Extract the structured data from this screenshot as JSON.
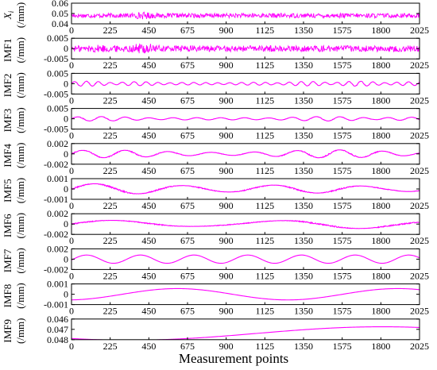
{
  "chart_data": {
    "type": "line",
    "xlabel": "Measurement points",
    "xlim": [
      0,
      2025
    ],
    "x_ticks": [
      0,
      225,
      450,
      675,
      900,
      1125,
      1350,
      1575,
      1800,
      2025
    ],
    "line_color": "#ff00ff",
    "panels": [
      {
        "id": "xi",
        "ylabel_main": "X",
        "ylabel_sub": "i",
        "ylabel_unit": "(/mm)",
        "ylim": [
          0.04,
          0.06
        ],
        "y_ticks": [
          "0.06",
          "0.05",
          "0.04"
        ],
        "tick_values": [
          0.06,
          0.05,
          0.04
        ],
        "signal": {
          "kind": "noise",
          "mean": 0.048,
          "amp": 0.0022,
          "bursts": [
            [
              420,
              60,
              1.6
            ]
          ]
        }
      },
      {
        "id": "imf1",
        "ylabel_main": "IMF1",
        "ylabel_unit": "(/mm)",
        "ylim": [
          -0.005,
          0.005
        ],
        "y_ticks": [
          "0.005",
          "0",
          "-0.005"
        ],
        "tick_values": [
          0.005,
          0,
          -0.005
        ],
        "signal": {
          "kind": "noise",
          "mean": 0,
          "amp": 0.0015,
          "bursts": [
            [
              420,
              60,
              2.0
            ],
            [
              180,
              80,
              1.3
            ]
          ]
        }
      },
      {
        "id": "imf2",
        "ylabel_main": "IMF2",
        "ylabel_unit": "(/mm)",
        "ylim": [
          -0.005,
          0.005
        ],
        "y_ticks": [
          "0.005",
          "0",
          "-0.005"
        ],
        "tick_values": [
          0.005,
          0,
          -0.005
        ],
        "signal": {
          "kind": "bursty",
          "mean": 0,
          "amp": 0.0012,
          "freq": 0.09
        }
      },
      {
        "id": "imf3",
        "ylabel_main": "IMF3",
        "ylabel_unit": "(/mm)",
        "ylim": [
          -0.005,
          0.005
        ],
        "y_ticks": [
          "0.005",
          "0",
          "-0.005"
        ],
        "tick_values": [
          0.005,
          0,
          -0.005
        ],
        "signal": {
          "kind": "bursty",
          "mean": 0,
          "amp": 0.0011,
          "freq": 0.045
        }
      },
      {
        "id": "imf4",
        "ylabel_main": "IMF4",
        "ylabel_unit": "(/mm)",
        "ylim": [
          -0.002,
          0.002
        ],
        "y_ticks": [
          "0.002",
          "0",
          "-0.002"
        ],
        "tick_values": [
          0.002,
          0,
          -0.002
        ],
        "signal": {
          "kind": "bursty",
          "mean": 0,
          "amp": 0.0008,
          "freq": 0.025
        }
      },
      {
        "id": "imf5",
        "ylabel_main": "IMF5",
        "ylabel_unit": "(/mm)",
        "ylim": [
          -0.001,
          0.001
        ],
        "y_ticks": [
          "0.001",
          "0",
          "-0.001"
        ],
        "tick_values": [
          0.001,
          0,
          -0.001
        ],
        "signal": {
          "kind": "bursty",
          "mean": 0,
          "amp": 0.0006,
          "freq": 0.012
        }
      },
      {
        "id": "imf6",
        "ylabel_main": "IMF6",
        "ylabel_unit": "(/mm)",
        "ylim": [
          -0.002,
          0.002
        ],
        "y_ticks": [
          "0.002",
          "0",
          "-0.002"
        ],
        "tick_values": [
          0.002,
          0,
          -0.002
        ],
        "signal": {
          "kind": "bursty",
          "mean": 0,
          "amp": 0.0009,
          "freq": 0.0065
        }
      },
      {
        "id": "imf7",
        "ylabel_main": "IMF7",
        "ylabel_unit": "(/mm)",
        "ylim": [
          -0.002,
          0.002
        ],
        "y_ticks": [
          "0.002",
          "0",
          "-0.002"
        ],
        "tick_values": [
          0.002,
          0,
          -0.002
        ],
        "signal": {
          "kind": "sine",
          "mean": 0,
          "amp": 0.0008,
          "freq": 0.0032,
          "phase": -0.2
        }
      },
      {
        "id": "imf8",
        "ylabel_main": "IMF8",
        "ylabel_unit": "(/mm)",
        "ylim": [
          -0.001,
          0.001
        ],
        "y_ticks": [
          "0.001",
          "0",
          "-0.001"
        ],
        "tick_values": [
          0.001,
          0,
          -0.001
        ],
        "signal": {
          "kind": "sine",
          "mean": 0,
          "amp": 0.00055,
          "freq": 0.00078,
          "phase": -1.45
        }
      },
      {
        "id": "imf9",
        "ylabel_main": "IMF9",
        "ylabel_unit": "(/mm)",
        "ylim": [
          0.048,
          0.046
        ],
        "y_ticks": [
          "0.046",
          "0.047",
          "0.048"
        ],
        "tick_values": [
          0.046,
          0.047,
          0.048
        ],
        "signal": {
          "kind": "sine",
          "mean": 0.0474,
          "amp": 0.00065,
          "freq": 0.00034,
          "phase": 0.85
        }
      }
    ]
  }
}
